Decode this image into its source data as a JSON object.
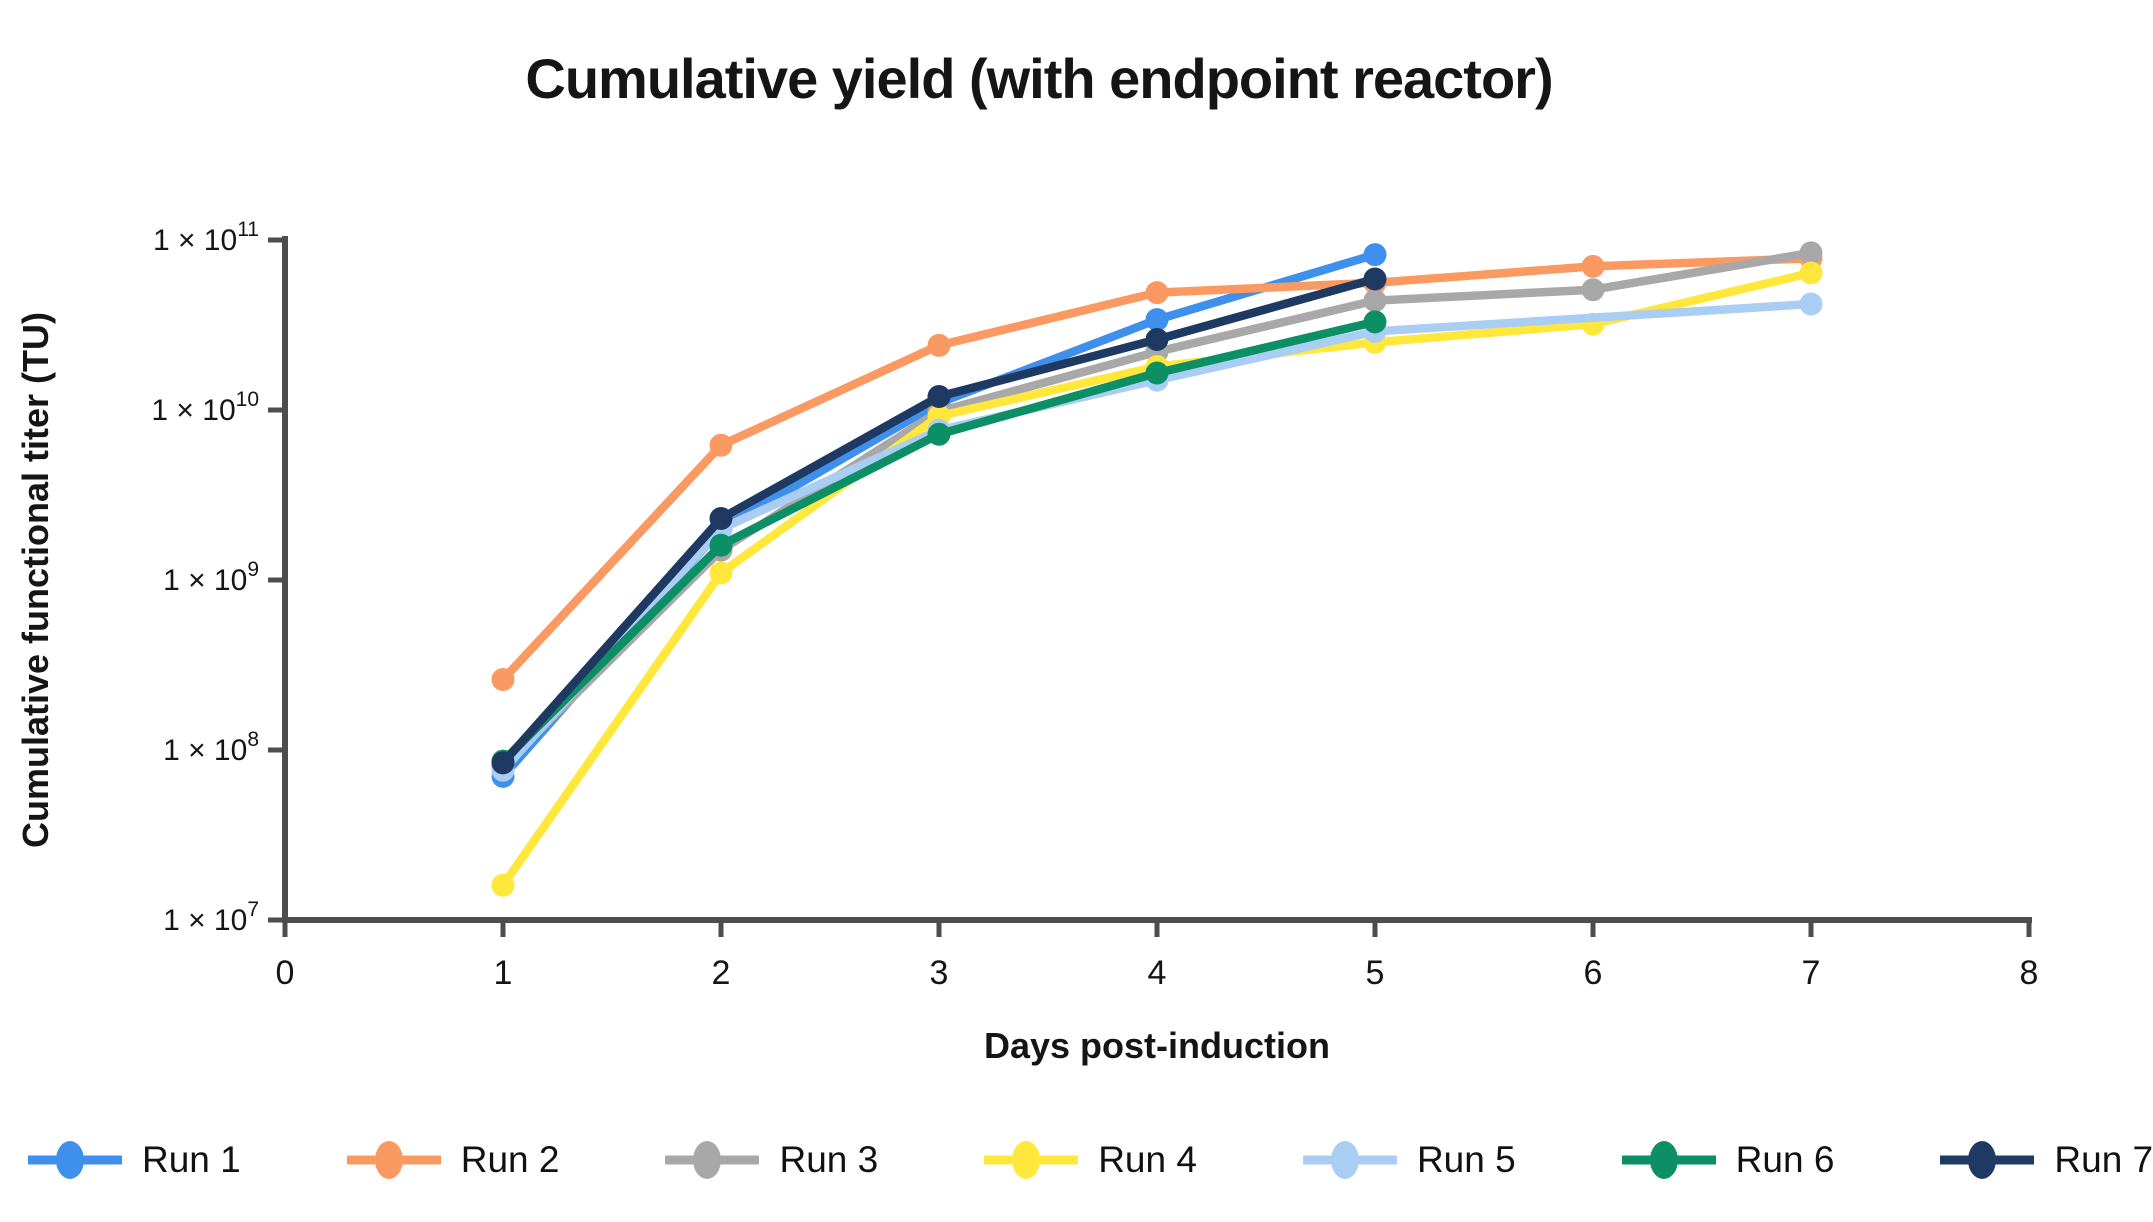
{
  "chart_data": {
    "type": "line",
    "title": "Cumulative yield (with endpoint reactor)",
    "xlabel": "Days post-induction",
    "ylabel": "Cumulative functional titer (TU)",
    "x_axis": {
      "min": 0,
      "max": 8,
      "ticks": [
        0,
        1,
        2,
        3,
        4,
        5,
        6,
        7,
        8
      ]
    },
    "y_axis": {
      "scale": "log",
      "min": 10000000.0,
      "max": 100000000000.0,
      "tick_label_base": "1 × 10",
      "tick_exponents": [
        7,
        8,
        9,
        10,
        11
      ]
    },
    "grid": false,
    "legend_position": "bottom",
    "series": [
      {
        "name": "Run 1",
        "color": "#3e90ec",
        "points": [
          [
            1,
            70000000.0
          ],
          [
            2,
            2000000000.0
          ],
          [
            3,
            11000000000.0
          ],
          [
            4,
            34000000000.0
          ],
          [
            5,
            82000000000.0
          ]
        ]
      },
      {
        "name": "Run 2",
        "color": "#fa9a62",
        "points": [
          [
            1,
            260000000.0
          ],
          [
            2,
            6200000000.0
          ],
          [
            3,
            24000000000.0
          ],
          [
            4,
            49000000000.0
          ],
          [
            5,
            56000000000.0
          ],
          [
            6,
            70000000000.0
          ],
          [
            7,
            78000000000.0
          ]
        ]
      },
      {
        "name": "Run 3",
        "color": "#a8a8a8",
        "points": [
          [
            1,
            80000000.0
          ],
          [
            2,
            1500000000.0
          ],
          [
            3,
            9800000000.0
          ],
          [
            4,
            22000000000.0
          ],
          [
            5,
            44000000000.0
          ],
          [
            6,
            51000000000.0
          ],
          [
            7,
            84000000000.0
          ]
        ]
      },
      {
        "name": "Run 4",
        "color": "#ffe73c",
        "points": [
          [
            1,
            16000000.0
          ],
          [
            2,
            1100000000.0
          ],
          [
            3,
            9200000000.0
          ],
          [
            4,
            18000000000.0
          ],
          [
            5,
            25000000000.0
          ],
          [
            6,
            32000000000.0
          ],
          [
            7,
            64000000000.0
          ]
        ]
      },
      {
        "name": "Run 5",
        "color": "#a9cdf3",
        "points": [
          [
            1,
            76000000.0
          ],
          [
            2,
            2000000000.0
          ],
          [
            3,
            7600000000.0
          ],
          [
            4,
            15000000000.0
          ],
          [
            5,
            29000000000.0
          ],
          [
            7,
            42000000000.0
          ]
        ]
      },
      {
        "name": "Run 6",
        "color": "#0d8f66",
        "points": [
          [
            1,
            86000000.0
          ],
          [
            2,
            1600000000.0
          ],
          [
            3,
            7200000000.0
          ],
          [
            4,
            16500000000.0
          ],
          [
            5,
            33000000000.0
          ]
        ]
      },
      {
        "name": "Run 7",
        "color": "#1e3a63",
        "points": [
          [
            1,
            84000000.0
          ],
          [
            2,
            2300000000.0
          ],
          [
            3,
            12000000000.0
          ],
          [
            4,
            26000000000.0
          ],
          [
            5,
            59000000000.0
          ]
        ]
      }
    ]
  }
}
